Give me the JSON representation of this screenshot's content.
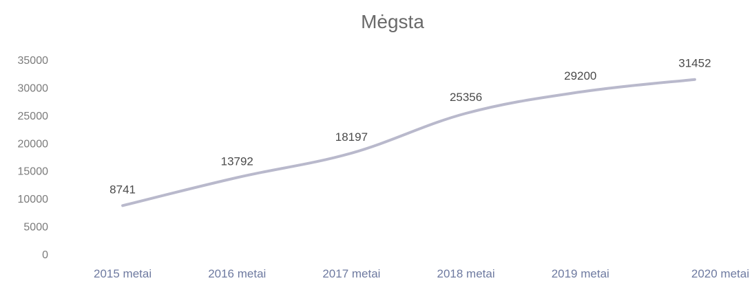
{
  "chart_data": {
    "type": "line",
    "title": "Mėgsta",
    "xlabel": "",
    "ylabel": "",
    "categories": [
      "2015 metai",
      "2016 metai",
      "2017 metai",
      "2018 metai",
      "2019 metai",
      "2020 metai"
    ],
    "series": [
      {
        "values": [
          8741,
          13792,
          18197,
          25356,
          29200,
          31452
        ],
        "color": "#b9b9cc"
      }
    ],
    "ylim": [
      0,
      35000
    ],
    "yticks": [
      "0",
      "5000",
      "10000",
      "15000",
      "20000",
      "25000",
      "30000",
      "35000"
    ],
    "data_labels": [
      "8741",
      "13792",
      "18197",
      "25356",
      "29200",
      "31452"
    ],
    "grid": false,
    "legend": "none"
  }
}
